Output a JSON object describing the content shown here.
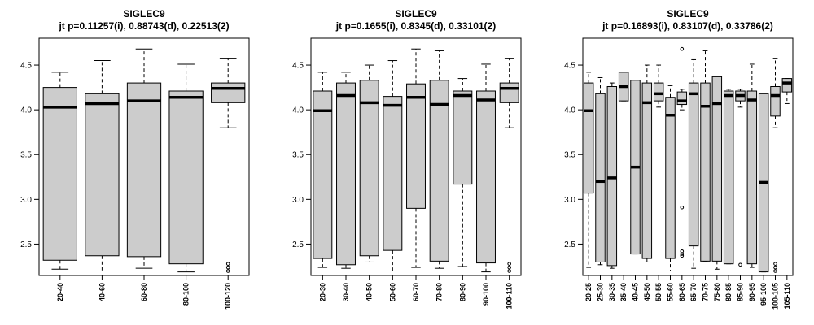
{
  "chart_data": [
    {
      "type": "boxplot",
      "title": "SIGLEC9",
      "subtitle": "jt p=0.11257(i), 0.88743(d), 0.22513(2)",
      "ylim": [
        2.15,
        4.8
      ],
      "yticks": [
        "2.5",
        "3.0",
        "3.5",
        "4.0",
        "4.5"
      ],
      "categories": [
        "20-40",
        "40-60",
        "60-80",
        "80-100",
        "100-120"
      ],
      "boxes": [
        {
          "whisker_low": 2.22,
          "q1": 2.32,
          "median": 4.03,
          "q3": 4.25,
          "whisker_high": 4.42,
          "outliers": []
        },
        {
          "whisker_low": 2.2,
          "q1": 2.37,
          "median": 4.07,
          "q3": 4.18,
          "whisker_high": 4.55,
          "outliers": []
        },
        {
          "whisker_low": 2.23,
          "q1": 2.36,
          "median": 4.1,
          "q3": 4.3,
          "whisker_high": 4.68,
          "outliers": []
        },
        {
          "whisker_low": 2.19,
          "q1": 2.28,
          "median": 4.14,
          "q3": 4.21,
          "whisker_high": 4.51,
          "outliers": []
        },
        {
          "whisker_low": 3.8,
          "q1": 4.08,
          "median": 4.24,
          "q3": 4.3,
          "whisker_high": 4.57,
          "outliers": [
            2.28,
            2.24,
            2.2
          ]
        }
      ]
    },
    {
      "type": "boxplot",
      "title": "SIGLEC9",
      "subtitle": "jt p=0.1655(i), 0.8345(d), 0.33101(2)",
      "ylim": [
        2.15,
        4.8
      ],
      "yticks": [
        "2.5",
        "3.0",
        "3.5",
        "4.0",
        "4.5"
      ],
      "categories": [
        "20-30",
        "30-40",
        "40-50",
        "50-60",
        "60-70",
        "70-80",
        "80-90",
        "90-100",
        "100-110"
      ],
      "boxes": [
        {
          "whisker_low": 2.24,
          "q1": 2.34,
          "median": 3.99,
          "q3": 4.21,
          "whisker_high": 4.42,
          "outliers": []
        },
        {
          "whisker_low": 2.23,
          "q1": 2.27,
          "median": 4.16,
          "q3": 4.3,
          "whisker_high": 4.42,
          "outliers": []
        },
        {
          "whisker_low": 2.3,
          "q1": 2.37,
          "median": 4.08,
          "q3": 4.33,
          "whisker_high": 4.5,
          "outliers": []
        },
        {
          "whisker_low": 2.2,
          "q1": 2.43,
          "median": 4.05,
          "q3": 4.15,
          "whisker_high": 4.55,
          "outliers": []
        },
        {
          "whisker_low": 2.24,
          "q1": 2.9,
          "median": 4.14,
          "q3": 4.29,
          "whisker_high": 4.68,
          "outliers": []
        },
        {
          "whisker_low": 2.23,
          "q1": 2.31,
          "median": 4.06,
          "q3": 4.33,
          "whisker_high": 4.66,
          "outliers": []
        },
        {
          "whisker_low": 2.25,
          "q1": 3.17,
          "median": 4.16,
          "q3": 4.21,
          "whisker_high": 4.35,
          "outliers": []
        },
        {
          "whisker_low": 2.19,
          "q1": 2.29,
          "median": 4.11,
          "q3": 4.21,
          "whisker_high": 4.51,
          "outliers": []
        },
        {
          "whisker_low": 3.8,
          "q1": 4.08,
          "median": 4.24,
          "q3": 4.3,
          "whisker_high": 4.57,
          "outliers": [
            2.28,
            2.24,
            2.2
          ]
        }
      ]
    },
    {
      "type": "boxplot",
      "title": "SIGLEC9",
      "subtitle": "jt p=0.16893(i), 0.83107(d), 0.33786(2)",
      "ylim": [
        2.15,
        4.8
      ],
      "yticks": [
        "2.5",
        "3.0",
        "3.5",
        "4.0",
        "4.5"
      ],
      "categories": [
        "20-25",
        "25-30",
        "30-35",
        "35-40",
        "40-45",
        "45-50",
        "50-55",
        "55-60",
        "60-65",
        "65-70",
        "70-75",
        "75-80",
        "80-85",
        "85-90",
        "90-95",
        "95-100",
        "100-105",
        "105-110"
      ],
      "boxes": [
        {
          "whisker_low": 2.24,
          "q1": 3.07,
          "median": 3.99,
          "q3": 4.3,
          "whisker_high": 4.42,
          "outliers": []
        },
        {
          "whisker_low": 2.27,
          "q1": 2.3,
          "median": 3.2,
          "q3": 4.18,
          "whisker_high": 4.36,
          "outliers": []
        },
        {
          "whisker_low": 2.23,
          "q1": 2.26,
          "median": 3.24,
          "q3": 4.26,
          "whisker_high": 4.3,
          "outliers": []
        },
        {
          "whisker_low": 4.1,
          "q1": 4.1,
          "median": 4.26,
          "q3": 4.42,
          "whisker_high": 4.42,
          "outliers": []
        },
        {
          "whisker_low": 2.39,
          "q1": 2.39,
          "median": 3.36,
          "q3": 4.33,
          "whisker_high": 4.33,
          "outliers": []
        },
        {
          "whisker_low": 2.3,
          "q1": 2.34,
          "median": 4.08,
          "q3": 4.3,
          "whisker_high": 4.5,
          "outliers": []
        },
        {
          "whisker_low": 4.03,
          "q1": 4.1,
          "median": 4.18,
          "q3": 4.3,
          "whisker_high": 4.5,
          "outliers": []
        },
        {
          "whisker_low": 2.2,
          "q1": 2.34,
          "median": 3.94,
          "q3": 4.14,
          "whisker_high": 4.27,
          "outliers": []
        },
        {
          "whisker_low": 4.0,
          "q1": 4.06,
          "median": 4.1,
          "q3": 4.2,
          "whisker_high": 4.23,
          "outliers": [
            4.68,
            2.91,
            2.42,
            2.39,
            2.37
          ]
        },
        {
          "whisker_low": 2.23,
          "q1": 2.48,
          "median": 4.18,
          "q3": 4.3,
          "whisker_high": 4.56,
          "outliers": []
        },
        {
          "whisker_low": 2.31,
          "q1": 2.31,
          "median": 4.04,
          "q3": 4.3,
          "whisker_high": 4.66,
          "outliers": []
        },
        {
          "whisker_low": 2.22,
          "q1": 2.31,
          "median": 4.07,
          "q3": 4.37,
          "whisker_high": 4.37,
          "outliers": []
        },
        {
          "whisker_low": 2.28,
          "q1": 2.28,
          "median": 4.16,
          "q3": 4.21,
          "whisker_high": 4.23,
          "outliers": []
        },
        {
          "whisker_low": 4.03,
          "q1": 4.1,
          "median": 4.16,
          "q3": 4.21,
          "whisker_high": 4.23,
          "outliers": [
            2.27
          ]
        },
        {
          "whisker_low": 2.24,
          "q1": 2.28,
          "median": 4.11,
          "q3": 4.21,
          "whisker_high": 4.51,
          "outliers": []
        },
        {
          "whisker_low": 2.19,
          "q1": 2.19,
          "median": 3.19,
          "q3": 4.18,
          "whisker_high": 4.18,
          "outliers": []
        },
        {
          "whisker_low": 3.8,
          "q1": 3.93,
          "median": 4.16,
          "q3": 4.26,
          "whisker_high": 4.57,
          "outliers": [
            2.28,
            2.24,
            2.2
          ]
        },
        {
          "whisker_low": 4.07,
          "q1": 4.2,
          "median": 4.3,
          "q3": 4.35,
          "whisker_high": 4.35,
          "outliers": []
        }
      ]
    }
  ]
}
